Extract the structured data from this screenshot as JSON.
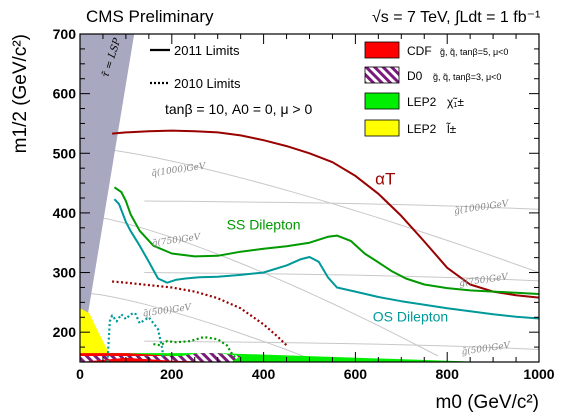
{
  "chart_data": {
    "type": "line",
    "header_left": "CMS Preliminary",
    "header_right": "√s = 7 TeV, ∫Ldt = 1 fb⁻¹",
    "xlabel": "m0 (GeV/c²)",
    "ylabel": "m1/2 (GeV/c²)",
    "xlim": [
      0,
      1000
    ],
    "ylim": [
      150,
      700
    ],
    "x_ticks": [
      0,
      200,
      400,
      600,
      800,
      1000
    ],
    "y_ticks": [
      200,
      300,
      400,
      500,
      600,
      700
    ],
    "params_text": "tanβ = 10,  A0 = 0,  μ > 0",
    "lsp_label": "τ̃ = LSP",
    "line_legend": [
      {
        "label": "2011 Limits",
        "style": "solid"
      },
      {
        "label": "2010 Limits",
        "style": "dotted"
      }
    ],
    "box_legend": [
      {
        "label": "CDF",
        "detail": "g̃, q̃, tanβ=5, μ<0",
        "color": "#ff0000",
        "pattern": "solid"
      },
      {
        "label": "D0",
        "detail": "g̃, q̃, tanβ=3, μ<0",
        "color": "#7a1a7a",
        "pattern": "hatched"
      },
      {
        "label": "LEP2",
        "detail": "χ̃₁±",
        "color": "#00ee00",
        "pattern": "solid"
      },
      {
        "label": "LEP2",
        "detail": "l̃±",
        "color": "#ffff00",
        "pattern": "solid"
      }
    ],
    "series": [
      {
        "name": "αT",
        "color": "#990000",
        "style": "solid",
        "x": [
          70,
          100,
          150,
          200,
          250,
          300,
          350,
          400,
          450,
          500,
          550,
          600,
          650,
          700,
          750,
          800,
          850,
          900,
          950,
          1000
        ],
        "y": [
          533,
          535,
          537,
          538,
          537,
          535,
          530,
          522,
          512,
          500,
          485,
          462,
          432,
          395,
          352,
          308,
          280,
          268,
          262,
          258
        ]
      },
      {
        "name": "SS Dilepton",
        "color": "#009900",
        "style": "solid",
        "x": [
          75,
          90,
          100,
          110,
          130,
          160,
          200,
          250,
          300,
          350,
          400,
          450,
          500,
          540,
          560,
          590,
          620,
          650,
          680,
          710,
          750,
          800,
          850,
          900,
          950,
          1000
        ],
        "y": [
          443,
          435,
          420,
          398,
          370,
          345,
          332,
          327,
          328,
          335,
          340,
          344,
          350,
          360,
          362,
          353,
          332,
          317,
          302,
          290,
          280,
          274,
          270,
          268,
          266,
          264
        ]
      },
      {
        "name": "OS Dilepton",
        "color": "#009999",
        "style": "solid",
        "x": [
          75,
          85,
          95,
          100,
          110,
          130,
          150,
          170,
          190,
          210,
          230,
          260,
          300,
          350,
          400,
          450,
          480,
          500,
          520,
          540,
          560,
          600,
          650,
          700,
          750,
          800,
          850,
          900,
          950,
          1000
        ],
        "y": [
          423,
          415,
          395,
          385,
          370,
          345,
          318,
          290,
          283,
          288,
          290,
          292,
          293,
          296,
          300,
          312,
          322,
          326,
          318,
          292,
          275,
          268,
          259,
          252,
          246,
          240,
          235,
          230,
          226,
          223
        ]
      },
      {
        "name": "αT (2010)",
        "color": "#990000",
        "style": "dotted",
        "x": [
          70,
          100,
          150,
          200,
          250,
          300,
          350,
          400,
          430,
          450
        ],
        "y": [
          285,
          283,
          279,
          275,
          268,
          257,
          240,
          213,
          193,
          178
        ]
      },
      {
        "name": "SS Dilepton (2010)",
        "color": "#009900",
        "style": "dotted",
        "x": [
          160,
          175,
          190,
          210,
          240,
          270,
          300,
          320,
          330,
          340
        ],
        "y": [
          180,
          178,
          185,
          183,
          185,
          192,
          188,
          178,
          165,
          155
        ]
      },
      {
        "name": "OS Dilepton (2010)",
        "color": "#009999",
        "style": "dotted",
        "x": [
          60,
          65,
          70,
          80,
          90,
          100,
          110,
          120,
          130,
          150,
          160,
          170,
          180,
          180
        ],
        "y": [
          150,
          218,
          228,
          218,
          230,
          222,
          230,
          232,
          215,
          225,
          215,
          205,
          170,
          155
        ]
      }
    ],
    "iso_mass_labels": [
      {
        "text": "q̃(1000)GeV",
        "x": 215,
        "y": 468
      },
      {
        "text": "q̃(750)GeV",
        "x": 210,
        "y": 350
      },
      {
        "text": "q̃(500)GeV",
        "x": 190,
        "y": 232
      },
      {
        "text": "g̃(1000)GeV",
        "x": 875,
        "y": 405
      },
      {
        "text": "g̃(750)GeV",
        "x": 880,
        "y": 283
      },
      {
        "text": "g̃(500)GeV",
        "x": 885,
        "y": 168
      }
    ],
    "curve_labels": [
      {
        "text": "αT",
        "x": 665,
        "y": 448,
        "color": "#990000"
      },
      {
        "text": "SS Dilepton",
        "x": 400,
        "y": 372,
        "color": "#009900"
      },
      {
        "text": "OS Dilepton",
        "x": 720,
        "y": 218,
        "color": "#009999"
      }
    ],
    "regions": {
      "lsp": {
        "x": [
          0,
          0,
          118
        ],
        "y": [
          150,
          700,
          700
        ],
        "color": "#a8a8c0"
      },
      "lep2_chargino": {
        "x": [
          0,
          1000,
          1000,
          300,
          0
        ],
        "y": [
          150,
          150,
          147,
          165,
          165
        ],
        "color": "#00ee00"
      },
      "lep2_slepton": {
        "x": [
          0,
          0,
          20,
          40,
          60,
          70
        ],
        "y": [
          150,
          240,
          232,
          200,
          170,
          160
        ],
        "color": "#ffff00"
      },
      "cdf": {
        "x": [
          0,
          330,
          330,
          200,
          100,
          0
        ],
        "y": [
          150,
          150,
          152,
          160,
          165,
          165
        ],
        "color": "#ff0000"
      },
      "d0": {
        "x": [
          0,
          220,
          260,
          300,
          350,
          330,
          200,
          100,
          0
        ],
        "y": [
          160,
          160,
          165,
          165,
          160,
          150,
          152,
          157,
          150
        ],
        "color": "#7a1a7a"
      }
    }
  }
}
